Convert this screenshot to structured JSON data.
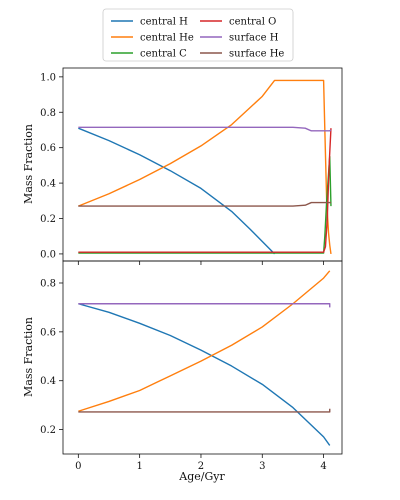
{
  "legend": {
    "entries": [
      {
        "label": "central H",
        "color": "#1f77b4"
      },
      {
        "label": "central O",
        "color": "#d62728"
      },
      {
        "label": "central He",
        "color": "#ff7f0e"
      },
      {
        "label": "surface H",
        "color": "#9467bd"
      },
      {
        "label": "central C",
        "color": "#2ca02c"
      },
      {
        "label": "surface He",
        "color": "#8c564b"
      }
    ]
  },
  "chart_data": [
    {
      "type": "line",
      "panel": "top",
      "ylabel": "Mass Fraction",
      "xlim": [
        -0.25,
        4.3
      ],
      "ylim": [
        -0.04,
        1.05
      ],
      "xticks": [
        0,
        1,
        2,
        3,
        4
      ],
      "yticks": [
        {
          "value": 0.0,
          "label": "0.0"
        },
        {
          "value": 0.2,
          "label": "0.2"
        },
        {
          "value": 0.4,
          "label": "0.4"
        },
        {
          "value": 0.6,
          "label": "0.6"
        },
        {
          "value": 0.8,
          "label": "0.8"
        },
        {
          "value": 1.0,
          "label": "1.0"
        }
      ],
      "series": [
        {
          "name": "central H",
          "color": "#1f77b4",
          "x": [
            0,
            0.5,
            1.0,
            1.5,
            2.0,
            2.5,
            2.8,
            3.0,
            3.2
          ],
          "y": [
            0.71,
            0.64,
            0.56,
            0.47,
            0.37,
            0.24,
            0.14,
            0.07,
            0.0
          ]
        },
        {
          "name": "central He",
          "color": "#ff7f0e",
          "x": [
            0,
            0.5,
            1.0,
            1.5,
            2.0,
            2.5,
            3.0,
            3.2,
            3.5,
            3.9,
            4.0,
            4.02,
            4.05,
            4.08,
            4.1,
            4.12
          ],
          "y": [
            0.27,
            0.34,
            0.42,
            0.51,
            0.61,
            0.73,
            0.89,
            0.98,
            0.98,
            0.98,
            0.98,
            0.7,
            0.3,
            0.12,
            0.05,
            0.0
          ]
        },
        {
          "name": "central C",
          "color": "#2ca02c",
          "x": [
            0,
            3.8,
            4.0,
            4.02,
            4.05,
            4.08,
            4.1,
            4.12
          ],
          "y": [
            0.005,
            0.005,
            0.005,
            0.1,
            0.3,
            0.45,
            0.55,
            0.27
          ]
        },
        {
          "name": "central O",
          "color": "#d62728",
          "x": [
            0,
            3.8,
            4.0,
            4.03,
            4.06,
            4.09,
            4.12
          ],
          "y": [
            0.01,
            0.01,
            0.01,
            0.04,
            0.2,
            0.5,
            0.71
          ]
        },
        {
          "name": "surface H",
          "color": "#9467bd",
          "x": [
            0,
            3.5,
            3.7,
            3.8,
            4.1,
            4.12
          ],
          "y": [
            0.715,
            0.715,
            0.71,
            0.695,
            0.695,
            0.7
          ]
        },
        {
          "name": "surface He",
          "color": "#8c564b",
          "x": [
            0,
            3.5,
            3.7,
            3.8,
            4.1,
            4.12
          ],
          "y": [
            0.27,
            0.27,
            0.275,
            0.29,
            0.29,
            0.29
          ]
        }
      ]
    },
    {
      "type": "line",
      "panel": "bottom",
      "xlabel": "Age/Gyr",
      "ylabel": "Mass Fraction",
      "xlim": [
        -0.25,
        4.3
      ],
      "ylim": [
        0.1,
        0.89
      ],
      "xticks": [
        {
          "value": 0,
          "label": "0"
        },
        {
          "value": 1,
          "label": "1"
        },
        {
          "value": 2,
          "label": "2"
        },
        {
          "value": 3,
          "label": "3"
        },
        {
          "value": 4,
          "label": "4"
        }
      ],
      "yticks": [
        {
          "value": 0.2,
          "label": "0.2"
        },
        {
          "value": 0.4,
          "label": "0.4"
        },
        {
          "value": 0.6,
          "label": "0.6"
        },
        {
          "value": 0.8,
          "label": "0.8"
        }
      ],
      "series": [
        {
          "name": "central H",
          "color": "#1f77b4",
          "x": [
            0,
            0.5,
            1.0,
            1.5,
            2.0,
            2.5,
            3.0,
            3.5,
            4.0,
            4.1
          ],
          "y": [
            0.715,
            0.68,
            0.635,
            0.585,
            0.525,
            0.46,
            0.385,
            0.29,
            0.17,
            0.135
          ]
        },
        {
          "name": "central He",
          "color": "#ff7f0e",
          "x": [
            0,
            0.5,
            1.0,
            1.5,
            2.0,
            2.5,
            3.0,
            3.5,
            4.0,
            4.1
          ],
          "y": [
            0.275,
            0.315,
            0.36,
            0.42,
            0.48,
            0.545,
            0.62,
            0.715,
            0.82,
            0.85
          ]
        },
        {
          "name": "surface H",
          "color": "#9467bd",
          "x": [
            0,
            4.1,
            4.1
          ],
          "y": [
            0.715,
            0.715,
            0.7
          ]
        },
        {
          "name": "surface He",
          "color": "#8c564b",
          "x": [
            0,
            4.1,
            4.1
          ],
          "y": [
            0.272,
            0.272,
            0.285
          ]
        }
      ]
    }
  ]
}
